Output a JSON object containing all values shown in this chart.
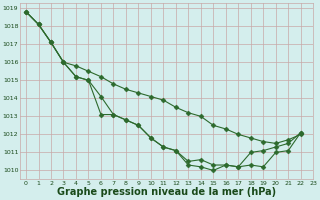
{
  "line1": [
    1018.8,
    1018.1,
    1017.1,
    1016.0,
    1015.8,
    1015.5,
    1015.2,
    1014.8,
    1014.5,
    1014.3,
    1014.1,
    1013.9,
    1013.5,
    1013.2,
    1013.0,
    1012.5,
    1012.3,
    1012.0,
    1011.8,
    1011.6,
    1011.5,
    1011.7,
    1012.0
  ],
  "line2": [
    1018.8,
    1018.1,
    1017.1,
    1016.0,
    1015.2,
    1015.0,
    1014.1,
    1013.1,
    1012.8,
    1012.5,
    1011.8,
    1011.3,
    1011.1,
    1010.5,
    1010.6,
    1010.3,
    1010.3,
    1010.2,
    1011.0,
    1011.1,
    1011.3,
    1011.5,
    1012.1
  ],
  "line3": [
    1018.8,
    1018.1,
    1017.1,
    1016.0,
    1015.2,
    1015.0,
    1013.1,
    1013.1,
    1012.8,
    1012.5,
    1011.8,
    1011.3,
    1011.1,
    1010.3,
    1010.2,
    1010.0,
    1010.3,
    1010.2,
    1010.3,
    1010.2,
    1011.0,
    1011.1,
    1012.1
  ],
  "x_min": 0,
  "x_max": 22,
  "y_min": 1010,
  "y_max": 1019,
  "line_color": "#2d6a2d",
  "bg_color": "#d4eeed",
  "grid_color_major": "#c8a8a8",
  "grid_color_minor": "#dcc8c8",
  "xlabel": "Graphe pression niveau de la mer (hPa)",
  "xlabel_color": "#1a4a1a",
  "tick_color": "#1a4a1a",
  "xlabel_fontsize": 7,
  "tick_fontsize": 4.5,
  "marker": "D",
  "marker_size": 2.5,
  "linewidth": 0.8
}
